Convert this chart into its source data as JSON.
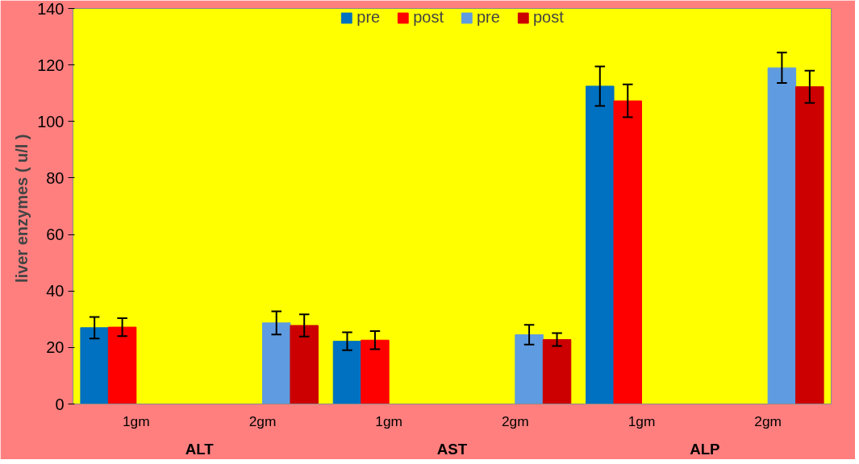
{
  "chart_data": {
    "type": "bar",
    "ylabel": "liver  enzymes ( u/l )",
    "categories": [
      "1gm",
      "2gm",
      "1gm",
      "2gm",
      "1gm",
      "2gm"
    ],
    "annotations": [
      "ALT",
      "AST",
      "ALP"
    ],
    "series": [
      {
        "name": "pre",
        "color": "#0070c0",
        "values": [
          27.0,
          null,
          22.2,
          null,
          112.5,
          null
        ],
        "errors": [
          3.8,
          null,
          3.2,
          null,
          7.0,
          null
        ]
      },
      {
        "name": "post",
        "color": "#ff0000",
        "values": [
          27.2,
          null,
          22.6,
          null,
          107.3,
          null
        ],
        "errors": [
          3.2,
          null,
          3.2,
          null,
          5.8,
          null
        ]
      },
      {
        "name": "pre",
        "color": "#5f9be0",
        "values": [
          null,
          28.7,
          null,
          24.5,
          null,
          119.0
        ],
        "errors": [
          null,
          4.1,
          null,
          3.5,
          null,
          5.4
        ]
      },
      {
        "name": "post",
        "color": "#cc0000",
        "values": [
          null,
          27.8,
          null,
          22.8,
          null,
          112.3
        ],
        "errors": [
          null,
          3.9,
          null,
          2.3,
          null,
          5.7
        ]
      }
    ],
    "ylim": [
      0,
      140
    ],
    "yticks": [
      0,
      20,
      40,
      60,
      80,
      100,
      120,
      140
    ],
    "grid": false,
    "legend": "top"
  }
}
